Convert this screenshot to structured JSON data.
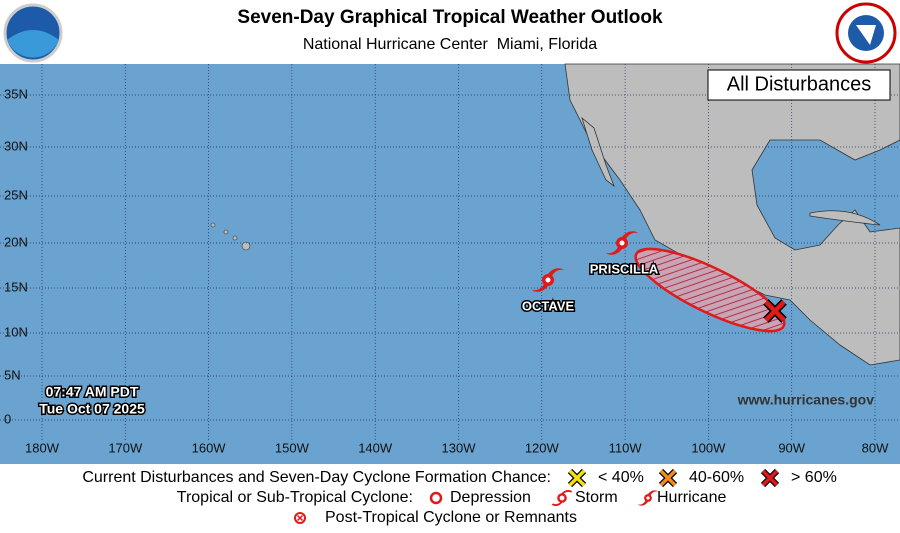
{
  "header": {
    "title": "Seven-Day Graphical Tropical Weather Outlook",
    "subtitle": "National Hurricane Center  Miami, Florida"
  },
  "map": {
    "panel_label": "All Disturbances",
    "lat_labels": [
      "35N",
      "30N",
      "25N",
      "20N",
      "15N",
      "10N",
      "5N",
      "0"
    ],
    "lon_labels": [
      "180W",
      "170W",
      "160W",
      "150W",
      "140W",
      "130W",
      "120W",
      "110W",
      "100W",
      "90W",
      "80W"
    ],
    "storms": [
      {
        "name": "PRISCILLA"
      },
      {
        "name": "OCTAVE"
      }
    ],
    "timestamp": [
      "07:47 AM PDT",
      "Tue Oct 07 2025"
    ],
    "website": "www.hurricanes.gov"
  },
  "legend": {
    "disturbances_label": "Current Disturbances and Seven-Day Cyclone Formation Chance:",
    "chances": [
      "< 40%",
      "40-60%",
      "> 60%"
    ],
    "cyclone_label": "Tropical or Sub-Tropical Cyclone:",
    "cyclone_types": [
      "Depression",
      "Storm",
      "Hurricane"
    ],
    "post_tropical": "Post-Tropical Cyclone or Remnants"
  }
}
